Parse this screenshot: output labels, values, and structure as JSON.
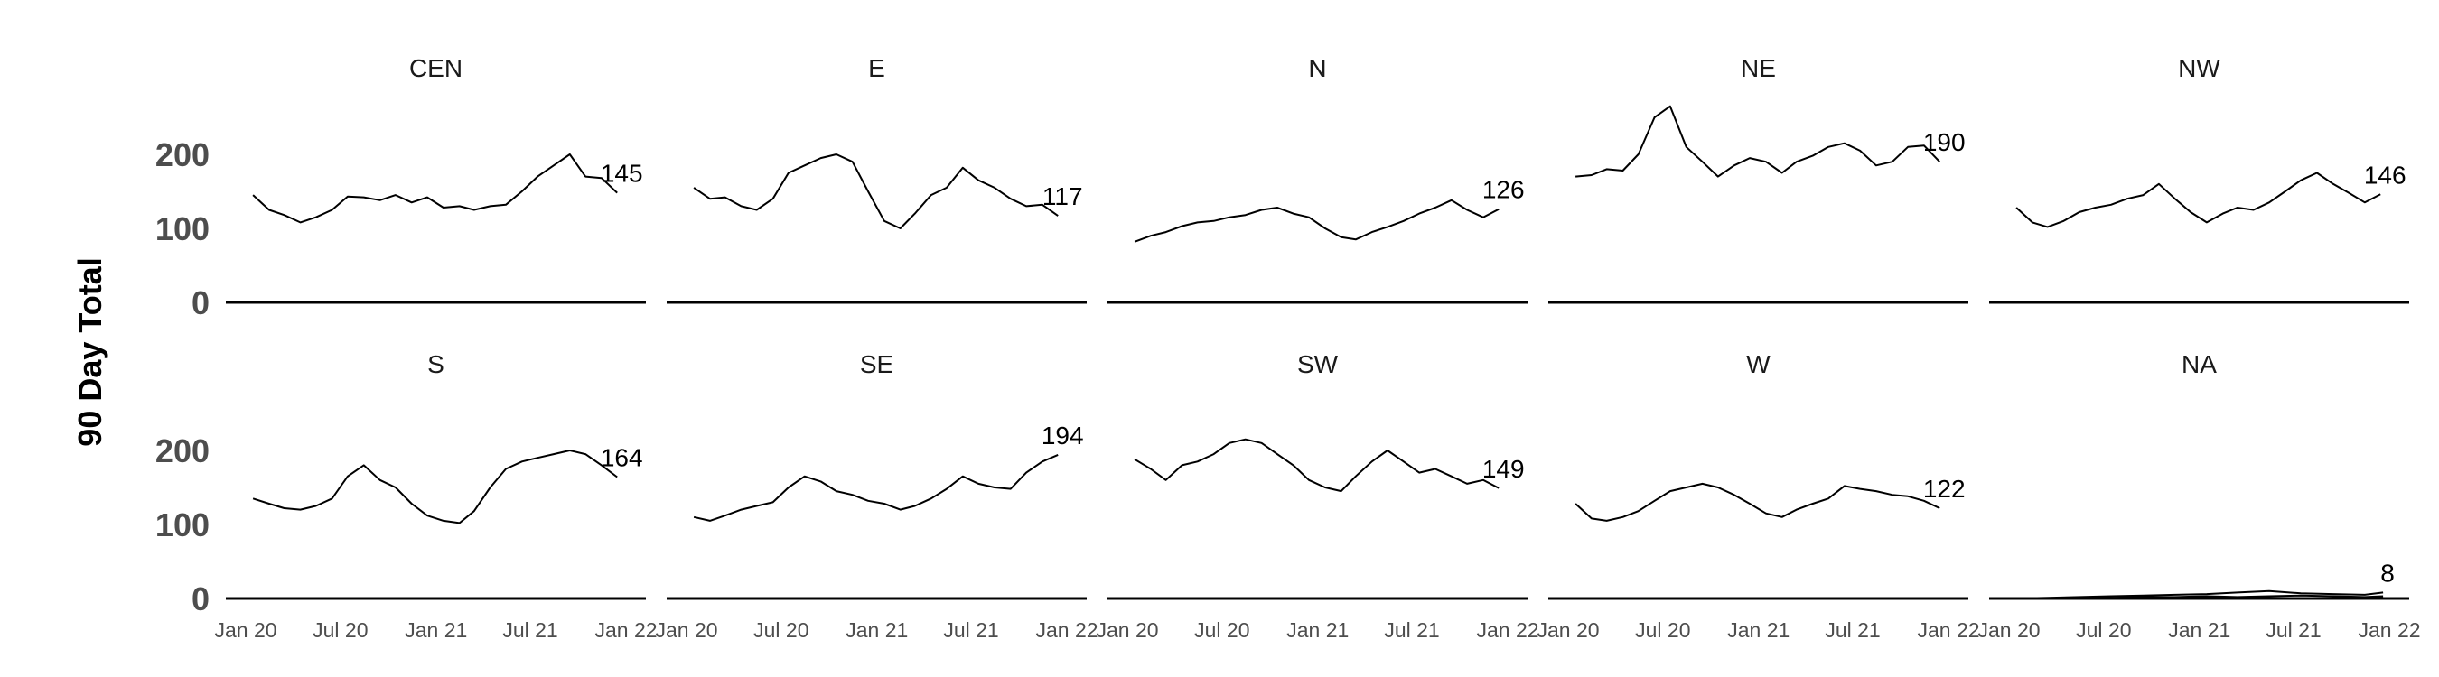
{
  "chart_data": {
    "type": "line",
    "ylabel": "90 Day Total",
    "xlabel": "",
    "ylim": [
      0,
      270
    ],
    "yticks": [
      0,
      100,
      200
    ],
    "xlim": [
      "2020-01-01",
      "2022-01-01"
    ],
    "xticks": [
      {
        "date": "2020-01-01",
        "label": "Jan 20"
      },
      {
        "date": "2020-07-01",
        "label": "Jul 20"
      },
      {
        "date": "2021-01-01",
        "label": "Jan 21"
      },
      {
        "date": "2021-07-01",
        "label": "Jul 21"
      },
      {
        "date": "2022-01-01",
        "label": "Jan 22"
      }
    ],
    "panels": [
      {
        "name": "CEN",
        "end_label": "145",
        "series": [
          {
            "dates": [
              "2020-01-15",
              "2020-02-15",
              "2020-03-15",
              "2020-04-15",
              "2020-05-15",
              "2020-06-15",
              "2020-07-15",
              "2020-08-15",
              "2020-09-15",
              "2020-10-15",
              "2020-11-15",
              "2020-12-15",
              "2021-01-15",
              "2021-02-15",
              "2021-03-15",
              "2021-04-15",
              "2021-05-15",
              "2021-06-15",
              "2021-07-15",
              "2021-08-15",
              "2021-09-15",
              "2021-10-15",
              "2021-11-15",
              "2021-12-15"
            ],
            "values": [
              145,
              125,
              118,
              108,
              115,
              125,
              143,
              142,
              138,
              145,
              135,
              142,
              128,
              130,
              125,
              130,
              132,
              150,
              170,
              185,
              200,
              170,
              168,
              148
            ]
          }
        ]
      },
      {
        "name": "E",
        "end_label": "117",
        "series": [
          {
            "dates": [
              "2020-01-15",
              "2020-02-15",
              "2020-03-15",
              "2020-04-15",
              "2020-05-15",
              "2020-06-15",
              "2020-07-15",
              "2020-08-15",
              "2020-09-15",
              "2020-10-15",
              "2020-11-15",
              "2020-12-15",
              "2021-01-15",
              "2021-02-15",
              "2021-03-15",
              "2021-04-15",
              "2021-05-15",
              "2021-06-15",
              "2021-07-15",
              "2021-08-15",
              "2021-09-15",
              "2021-10-15",
              "2021-11-15",
              "2021-12-15"
            ],
            "values": [
              155,
              140,
              142,
              130,
              125,
              140,
              175,
              185,
              195,
              200,
              190,
              150,
              110,
              100,
              120,
              145,
              155,
              182,
              165,
              155,
              140,
              130,
              132,
              117
            ]
          }
        ]
      },
      {
        "name": "N",
        "end_label": "126",
        "series": [
          {
            "dates": [
              "2020-01-15",
              "2020-02-15",
              "2020-03-15",
              "2020-04-15",
              "2020-05-15",
              "2020-06-15",
              "2020-07-15",
              "2020-08-15",
              "2020-09-15",
              "2020-10-15",
              "2020-11-15",
              "2020-12-15",
              "2021-01-15",
              "2021-02-15",
              "2021-03-15",
              "2021-04-15",
              "2021-05-15",
              "2021-06-15",
              "2021-07-15",
              "2021-08-15",
              "2021-09-15",
              "2021-10-15",
              "2021-11-15",
              "2021-12-15"
            ],
            "values": [
              82,
              90,
              95,
              103,
              108,
              110,
              115,
              118,
              125,
              128,
              120,
              115,
              100,
              88,
              85,
              95,
              102,
              110,
              120,
              128,
              138,
              125,
              115,
              126
            ]
          }
        ]
      },
      {
        "name": "NE",
        "end_label": "190",
        "series": [
          {
            "dates": [
              "2020-01-15",
              "2020-02-15",
              "2020-03-15",
              "2020-04-15",
              "2020-05-15",
              "2020-06-15",
              "2020-07-15",
              "2020-08-15",
              "2020-09-15",
              "2020-10-15",
              "2020-11-15",
              "2020-12-15",
              "2021-01-15",
              "2021-02-15",
              "2021-03-15",
              "2021-04-15",
              "2021-05-15",
              "2021-06-15",
              "2021-07-15",
              "2021-08-15",
              "2021-09-15",
              "2021-10-15",
              "2021-11-15",
              "2021-12-15"
            ],
            "values": [
              170,
              172,
              180,
              178,
              200,
              250,
              265,
              210,
              190,
              170,
              185,
              195,
              190,
              175,
              190,
              198,
              210,
              215,
              205,
              185,
              190,
              210,
              212,
              190
            ]
          }
        ]
      },
      {
        "name": "NW",
        "end_label": "146",
        "series": [
          {
            "dates": [
              "2020-01-15",
              "2020-02-15",
              "2020-03-15",
              "2020-04-15",
              "2020-05-15",
              "2020-06-15",
              "2020-07-15",
              "2020-08-15",
              "2020-09-15",
              "2020-10-15",
              "2020-11-15",
              "2020-12-15",
              "2021-01-15",
              "2021-02-15",
              "2021-03-15",
              "2021-04-15",
              "2021-05-15",
              "2021-06-15",
              "2021-07-15",
              "2021-08-15",
              "2021-09-15",
              "2021-10-15",
              "2021-11-15",
              "2021-12-15"
            ],
            "values": [
              128,
              108,
              102,
              110,
              122,
              128,
              132,
              140,
              145,
              160,
              140,
              122,
              108,
              120,
              128,
              125,
              135,
              150,
              165,
              175,
              160,
              148,
              135,
              146
            ]
          }
        ]
      },
      {
        "name": "S",
        "end_label": "164",
        "series": [
          {
            "dates": [
              "2020-01-15",
              "2020-02-15",
              "2020-03-15",
              "2020-04-15",
              "2020-05-15",
              "2020-06-15",
              "2020-07-15",
              "2020-08-15",
              "2020-09-15",
              "2020-10-15",
              "2020-11-15",
              "2020-12-15",
              "2021-01-15",
              "2021-02-15",
              "2021-03-15",
              "2021-04-15",
              "2021-05-15",
              "2021-06-15",
              "2021-07-15",
              "2021-08-15",
              "2021-09-15",
              "2021-10-15",
              "2021-11-15",
              "2021-12-15"
            ],
            "values": [
              135,
              128,
              122,
              120,
              125,
              135,
              165,
              180,
              160,
              150,
              128,
              112,
              105,
              102,
              118,
              150,
              175,
              185,
              190,
              195,
              200,
              195,
              180,
              164
            ]
          }
        ]
      },
      {
        "name": "SE",
        "end_label": "194",
        "series": [
          {
            "dates": [
              "2020-01-15",
              "2020-02-15",
              "2020-03-15",
              "2020-04-15",
              "2020-05-15",
              "2020-06-15",
              "2020-07-15",
              "2020-08-15",
              "2020-09-15",
              "2020-10-15",
              "2020-11-15",
              "2020-12-15",
              "2021-01-15",
              "2021-02-15",
              "2021-03-15",
              "2021-04-15",
              "2021-05-15",
              "2021-06-15",
              "2021-07-15",
              "2021-08-15",
              "2021-09-15",
              "2021-10-15",
              "2021-11-15",
              "2021-12-15"
            ],
            "values": [
              110,
              105,
              112,
              120,
              125,
              130,
              150,
              165,
              158,
              145,
              140,
              132,
              128,
              120,
              125,
              135,
              148,
              165,
              155,
              150,
              148,
              170,
              185,
              194
            ]
          }
        ]
      },
      {
        "name": "SW",
        "end_label": "149",
        "series": [
          {
            "dates": [
              "2020-01-15",
              "2020-02-15",
              "2020-03-15",
              "2020-04-15",
              "2020-05-15",
              "2020-06-15",
              "2020-07-15",
              "2020-08-15",
              "2020-09-15",
              "2020-10-15",
              "2020-11-15",
              "2020-12-15",
              "2021-01-15",
              "2021-02-15",
              "2021-03-15",
              "2021-04-15",
              "2021-05-15",
              "2021-06-15",
              "2021-07-15",
              "2021-08-15",
              "2021-09-15",
              "2021-10-15",
              "2021-11-15",
              "2021-12-15"
            ],
            "values": [
              188,
              175,
              160,
              180,
              185,
              195,
              210,
              215,
              210,
              195,
              180,
              160,
              150,
              145,
              165,
              185,
              200,
              185,
              170,
              175,
              165,
              155,
              160,
              149
            ]
          }
        ]
      },
      {
        "name": "W",
        "end_label": "122",
        "series": [
          {
            "dates": [
              "2020-01-15",
              "2020-02-15",
              "2020-03-15",
              "2020-04-15",
              "2020-05-15",
              "2020-06-15",
              "2020-07-15",
              "2020-08-15",
              "2020-09-15",
              "2020-10-15",
              "2020-11-15",
              "2020-12-15",
              "2021-01-15",
              "2021-02-15",
              "2021-03-15",
              "2021-04-15",
              "2021-05-15",
              "2021-06-15",
              "2021-07-15",
              "2021-08-15",
              "2021-09-15",
              "2021-10-15",
              "2021-11-15",
              "2021-12-15"
            ],
            "values": [
              128,
              108,
              105,
              110,
              118,
              132,
              145,
              150,
              155,
              150,
              140,
              128,
              115,
              110,
              120,
              128,
              135,
              152,
              148,
              145,
              140,
              138,
              132,
              122
            ]
          }
        ]
      },
      {
        "name": "NA",
        "end_label": "8",
        "series": [
          {
            "dates": [
              "2020-01-15",
              "2020-03-15",
              "2020-05-15",
              "2020-07-15",
              "2020-09-15",
              "2020-11-15",
              "2021-01-15",
              "2021-03-15",
              "2021-05-15",
              "2021-07-15",
              "2021-09-15",
              "2021-11-15",
              "2021-12-20"
            ],
            "values": [
              0,
              1,
              2,
              3,
              4,
              5,
              6,
              8,
              10,
              7,
              6,
              5,
              8
            ]
          },
          {
            "dates": [
              "2020-01-15",
              "2020-03-15",
              "2020-05-15",
              "2020-07-15",
              "2020-09-15",
              "2020-11-15",
              "2021-01-15",
              "2021-03-15",
              "2021-05-15",
              "2021-07-15",
              "2021-09-15",
              "2021-11-15",
              "2021-12-20"
            ],
            "values": [
              0,
              0,
              1,
              1,
              2,
              2,
              3,
              2,
              3,
              4,
              3,
              2,
              3
            ]
          }
        ]
      }
    ]
  }
}
